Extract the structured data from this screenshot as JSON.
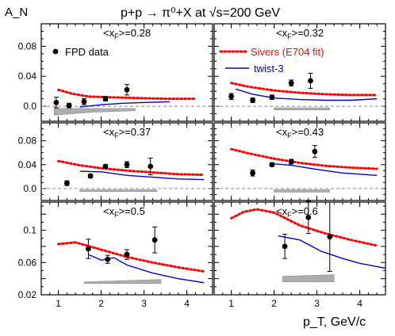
{
  "chart_data": {
    "type": "scatter",
    "title": "p+p → π⁰+X at √s=200 GeV",
    "ylabel": "A_N",
    "xlabel": "p_T, GeV/c",
    "x_ticks": [
      "1",
      "2",
      "3",
      "4"
    ],
    "xlim": [
      0.6,
      4.6
    ],
    "legend": {
      "fpd": "FPD data",
      "sivers": "Sivers (E704 fit)",
      "twist": "twist-3"
    },
    "colors": {
      "data": "#000000",
      "sivers": "#ff0000",
      "twist": "#0000cc",
      "band": "#999999",
      "zero": "#888888"
    },
    "panels": [
      {
        "label": "<x_F>=0.28",
        "ylim": [
          -0.02,
          0.11
        ],
        "y_ticks": [
          "0.0",
          "0.04",
          "0.08"
        ],
        "zero_line": true,
        "data": [
          {
            "x": 0.95,
            "y": 0.005,
            "err": 0.007
          },
          {
            "x": 1.25,
            "y": 0.001,
            "err": 0.003
          },
          {
            "x": 1.6,
            "y": 0.006,
            "err": 0.004
          },
          {
            "x": 2.1,
            "y": 0.01,
            "err": 0.003
          },
          {
            "x": 2.6,
            "y": 0.022,
            "err": 0.007
          }
        ],
        "sivers": [
          [
            1.0,
            0.022
          ],
          [
            1.3,
            0.017
          ],
          [
            1.7,
            0.013
          ],
          [
            2.2,
            0.012
          ],
          [
            2.8,
            0.011
          ],
          [
            3.5,
            0.01
          ],
          [
            4.2,
            0.01
          ]
        ],
        "twist": [
          [
            1.5,
            -0.001
          ],
          [
            2.0,
            0.002
          ],
          [
            2.5,
            0.004
          ],
          [
            3.0,
            0.005
          ],
          [
            3.6,
            0.006
          ]
        ],
        "band": [
          [
            0.9,
            -0.003,
            -0.012
          ],
          [
            1.8,
            -0.003,
            -0.008
          ],
          [
            2.8,
            -0.003,
            -0.006
          ]
        ]
      },
      {
        "label": "<x_F>=0.32",
        "ylim": [
          -0.02,
          0.11
        ],
        "y_ticks": [],
        "zero_line": true,
        "data": [
          {
            "x": 1.0,
            "y": 0.013,
            "err": 0.004
          },
          {
            "x": 1.5,
            "y": 0.008,
            "err": 0.003
          },
          {
            "x": 1.95,
            "y": 0.012,
            "err": 0.003
          },
          {
            "x": 2.4,
            "y": 0.031,
            "err": 0.004
          },
          {
            "x": 2.85,
            "y": 0.034,
            "err": 0.01
          }
        ],
        "sivers": [
          [
            1.0,
            0.031
          ],
          [
            1.4,
            0.026
          ],
          [
            2.0,
            0.021
          ],
          [
            2.6,
            0.018
          ],
          [
            3.2,
            0.016
          ],
          [
            3.8,
            0.015
          ],
          [
            4.4,
            0.015
          ]
        ],
        "twist": [
          [
            1.1,
            0.023
          ],
          [
            1.5,
            0.016
          ],
          [
            2.0,
            0.011
          ],
          [
            2.6,
            0.009
          ],
          [
            3.2,
            0.008
          ],
          [
            3.8,
            0.008
          ],
          [
            4.4,
            0.01
          ]
        ],
        "band": [
          [
            2.0,
            -0.002,
            -0.005
          ],
          [
            3.3,
            -0.002,
            -0.005
          ]
        ]
      },
      {
        "label": "<x_F>=0.37",
        "ylim": [
          -0.02,
          0.11
        ],
        "y_ticks": [
          "0.0",
          "0.04",
          "0.08"
        ],
        "zero_line": true,
        "data": [
          {
            "x": 1.2,
            "y": 0.009,
            "err": 0.004
          },
          {
            "x": 1.75,
            "y": 0.021,
            "err": 0.003
          },
          {
            "x": 2.1,
            "y": 0.037,
            "err": 0.003
          },
          {
            "x": 2.6,
            "y": 0.04,
            "err": 0.005
          },
          {
            "x": 3.15,
            "y": 0.037,
            "err": 0.014
          }
        ],
        "sivers": [
          [
            1.0,
            0.046
          ],
          [
            1.5,
            0.039
          ],
          [
            2.0,
            0.034
          ],
          [
            2.6,
            0.03
          ],
          [
            3.2,
            0.027
          ],
          [
            3.8,
            0.024
          ],
          [
            4.4,
            0.023
          ]
        ],
        "twist": [
          [
            1.5,
            0.029
          ],
          [
            2.0,
            0.028
          ],
          [
            2.6,
            0.022
          ],
          [
            3.2,
            0.019
          ],
          [
            3.8,
            0.016
          ],
          [
            4.4,
            0.015
          ]
        ],
        "band": [
          [
            1.5,
            -0.002,
            -0.005
          ],
          [
            3.3,
            -0.002,
            -0.005
          ]
        ]
      },
      {
        "label": "<x_F>=0.43",
        "ylim": [
          -0.02,
          0.11
        ],
        "y_ticks": [],
        "zero_line": true,
        "data": [
          {
            "x": 1.5,
            "y": 0.026,
            "err": 0.005
          },
          {
            "x": 1.95,
            "y": 0.04,
            "err": 0.003
          },
          {
            "x": 2.4,
            "y": 0.045,
            "err": 0.004
          },
          {
            "x": 2.95,
            "y": 0.062,
            "err": 0.01
          }
        ],
        "sivers": [
          [
            1.0,
            0.066
          ],
          [
            1.4,
            0.059
          ],
          [
            2.0,
            0.05
          ],
          [
            2.6,
            0.043
          ],
          [
            3.2,
            0.038
          ],
          [
            3.8,
            0.035
          ],
          [
            4.4,
            0.033
          ]
        ],
        "twist": [
          [
            1.9,
            0.042
          ],
          [
            2.4,
            0.039
          ],
          [
            3.0,
            0.032
          ],
          [
            3.6,
            0.026
          ],
          [
            4.4,
            0.022
          ]
        ],
        "band": [
          [
            2.0,
            -0.002,
            -0.006
          ],
          [
            3.3,
            -0.002,
            -0.006
          ]
        ]
      },
      {
        "label": "<x_F>=0.5",
        "ylim": [
          0.02,
          0.135
        ],
        "y_ticks": [
          "0.02",
          "0.06",
          "0.1"
        ],
        "zero_line": false,
        "data": [
          {
            "x": 1.7,
            "y": 0.077,
            "err": 0.012
          },
          {
            "x": 2.15,
            "y": 0.064,
            "err": 0.005
          },
          {
            "x": 2.6,
            "y": 0.07,
            "err": 0.006
          },
          {
            "x": 3.25,
            "y": 0.088,
            "err": 0.016
          }
        ],
        "sivers": [
          [
            1.0,
            0.083
          ],
          [
            1.4,
            0.085
          ],
          [
            2.0,
            0.076
          ],
          [
            2.6,
            0.067
          ],
          [
            3.2,
            0.06
          ],
          [
            3.8,
            0.054
          ],
          [
            4.4,
            0.049
          ]
        ],
        "twist": [
          [
            1.7,
            0.07
          ],
          [
            2.0,
            0.063
          ],
          [
            2.3,
            0.066
          ],
          [
            2.6,
            0.057
          ],
          [
            3.2,
            0.047
          ],
          [
            3.8,
            0.04
          ],
          [
            4.4,
            0.035
          ]
        ],
        "band": [
          [
            1.6,
            0.036,
            0.034
          ],
          [
            3.4,
            0.039,
            0.034
          ]
        ]
      },
      {
        "label": "<x_F>=0.6",
        "ylim": [
          0.02,
          0.135
        ],
        "y_ticks": [],
        "zero_line": false,
        "data": [
          {
            "x": 2.25,
            "y": 0.08,
            "err": 0.015
          },
          {
            "x": 2.8,
            "y": 0.116,
            "err": 0.02
          },
          {
            "x": 3.3,
            "y": 0.092,
            "err": 0.043
          }
        ],
        "sivers": [
          [
            1.0,
            0.115
          ],
          [
            1.3,
            0.123
          ],
          [
            1.6,
            0.126
          ],
          [
            2.0,
            0.122
          ],
          [
            2.6,
            0.106
          ],
          [
            3.2,
            0.096
          ],
          [
            3.8,
            0.088
          ],
          [
            4.4,
            0.081
          ]
        ],
        "twist": [
          [
            2.1,
            0.093
          ],
          [
            2.6,
            0.088
          ],
          [
            3.1,
            0.074
          ],
          [
            3.6,
            0.065
          ],
          [
            4.0,
            0.059
          ],
          [
            4.6,
            0.053
          ]
        ],
        "band": [
          [
            2.2,
            0.043,
            0.036
          ],
          [
            3.4,
            0.045,
            0.036
          ]
        ]
      }
    ]
  }
}
